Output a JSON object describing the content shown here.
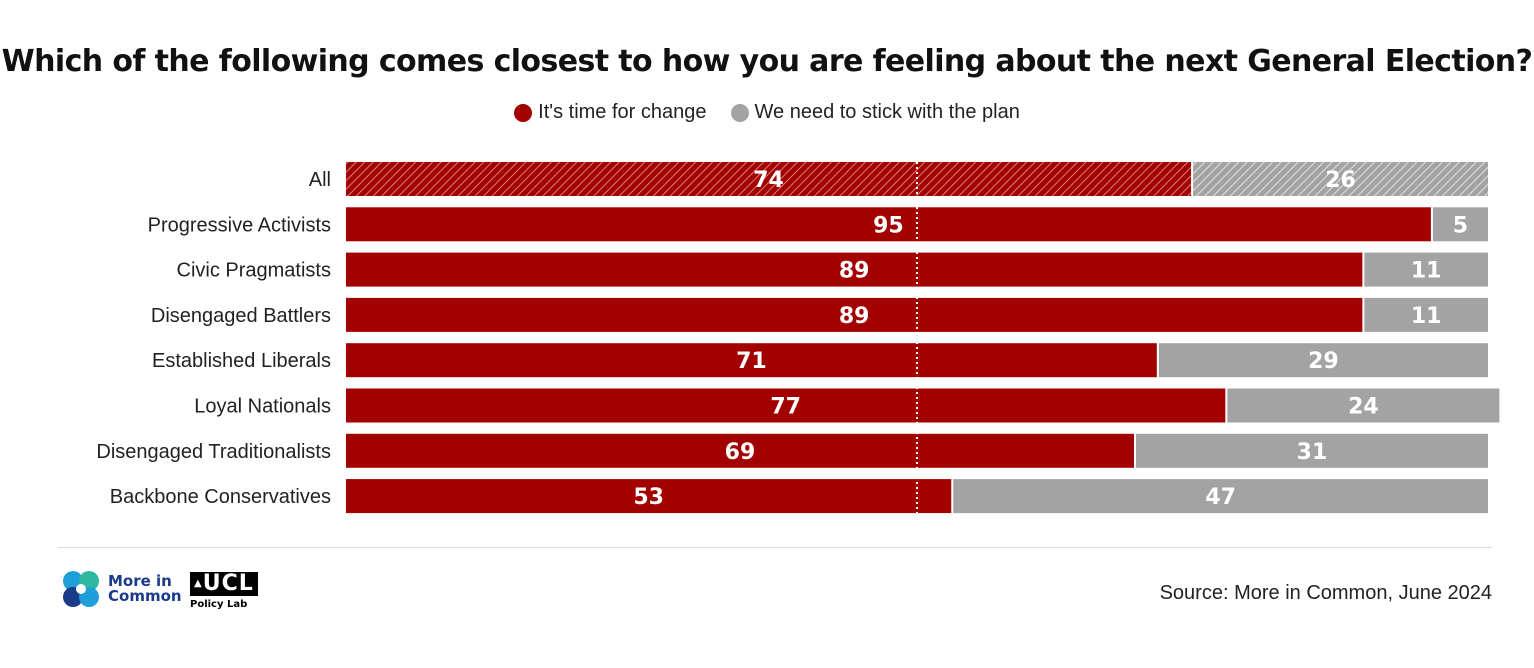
{
  "colors": {
    "change": "#a30000",
    "stick": "#a3a3a3"
  },
  "chart_data": {
    "type": "bar",
    "orientation": "horizontal",
    "stacked": true,
    "title": "Which of the following comes closest to how you are feeling about the next General Election?",
    "xlim": [
      0,
      100
    ],
    "reference_line": 50,
    "categories": [
      "All",
      "Progressive Activists",
      "Civic Pragmatists",
      "Disengaged Battlers",
      "Established Liberals",
      "Loyal Nationals",
      "Disengaged Traditionalists",
      "Backbone Conservatives"
    ],
    "series": [
      {
        "name": "It's time for change",
        "values": [
          74,
          95,
          89,
          89,
          71,
          77,
          69,
          53
        ]
      },
      {
        "name": "We need to stick with the plan",
        "values": [
          26,
          5,
          11,
          11,
          29,
          24,
          31,
          47
        ]
      }
    ],
    "hatched_categories": [
      "All"
    ]
  },
  "footer": {
    "logo1_line1": "More in",
    "logo1_line2": "Common",
    "logo2_text": "UCL",
    "logo2_sub": "Policy Lab",
    "source": "Source: More in Common, June 2024"
  }
}
